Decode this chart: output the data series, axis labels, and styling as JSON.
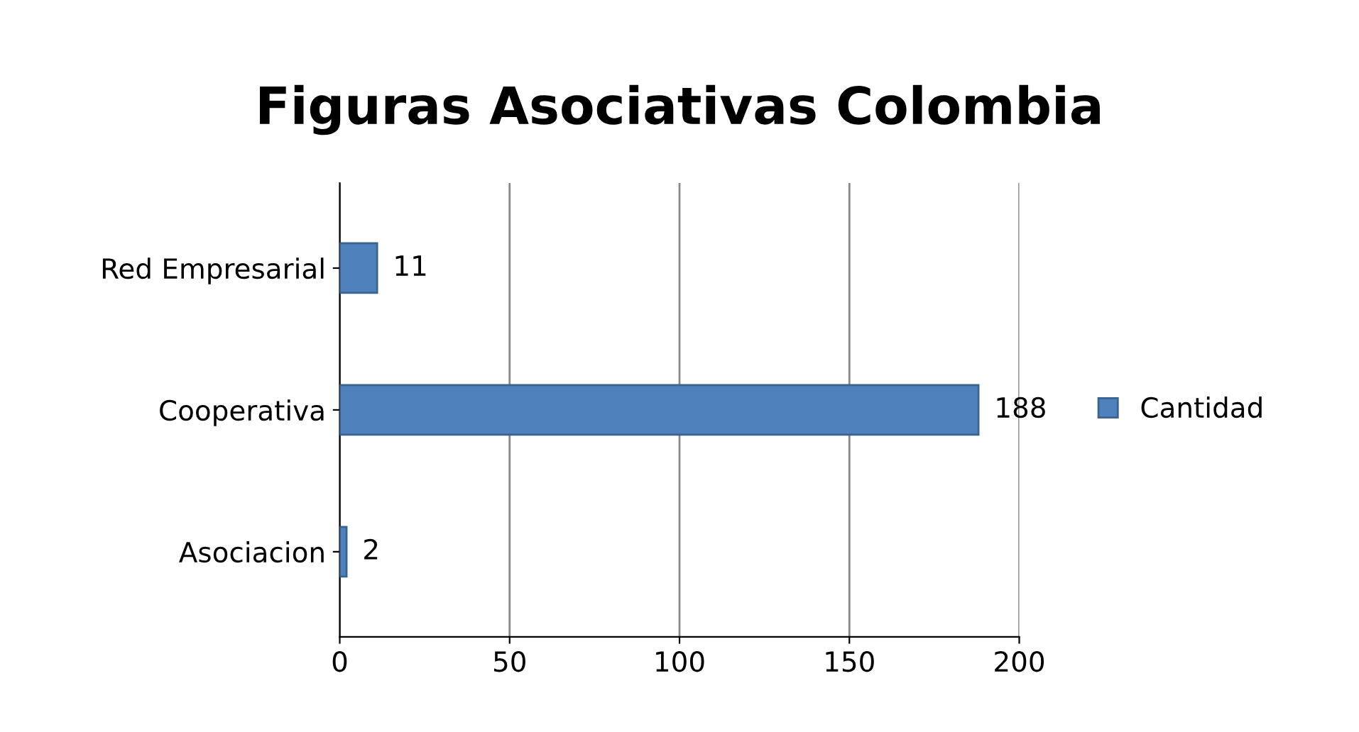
{
  "chart_data": {
    "type": "bar",
    "orientation": "horizontal",
    "title": "Figuras Asociativas Colombia",
    "categories": [
      "Red Empresarial",
      "Cooperativa",
      "Asociacion"
    ],
    "series": [
      {
        "name": "Cantidad",
        "color": "#4f81bd",
        "values": [
          11,
          188,
          2
        ]
      }
    ],
    "xlim": [
      0,
      200
    ],
    "xticks": [
      0,
      50,
      100,
      150,
      200
    ],
    "grid": "x",
    "legend": "right",
    "data_labels": true
  }
}
